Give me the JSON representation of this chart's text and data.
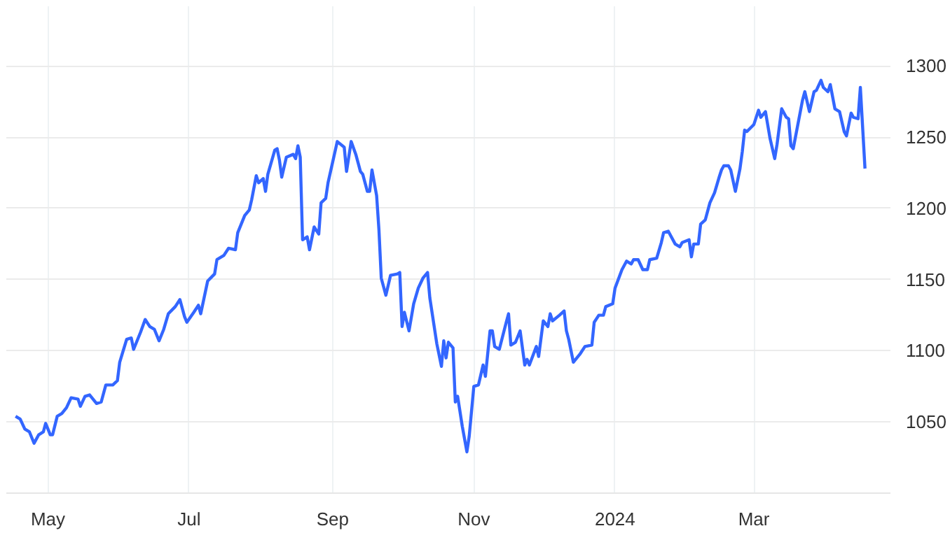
{
  "chart_data": {
    "type": "line",
    "xlim": [
      "2023-04-13",
      "2024-04-29"
    ],
    "ylim": [
      1000,
      1342
    ],
    "xticks": [
      {
        "value": "2023-05-01",
        "label": "May"
      },
      {
        "value": "2023-07-01",
        "label": "Jul"
      },
      {
        "value": "2023-09-01",
        "label": "Sep"
      },
      {
        "value": "2023-11-01",
        "label": "Nov"
      },
      {
        "value": "2024-01-01",
        "label": "2024"
      },
      {
        "value": "2024-03-01",
        "label": "Mar"
      }
    ],
    "yticks": [
      1050,
      1100,
      1150,
      1200,
      1250,
      1300
    ],
    "grid": true,
    "marker": "none",
    "line_style": "solid",
    "x": [
      "2023-04-17",
      "2023-04-19",
      "2023-04-21",
      "2023-04-23",
      "2023-04-25",
      "2023-04-27",
      "2023-04-29",
      "2023-04-30",
      "2023-05-02",
      "2023-05-03",
      "2023-05-05",
      "2023-05-07",
      "2023-05-09",
      "2023-05-11",
      "2023-05-14",
      "2023-05-15",
      "2023-05-17",
      "2023-05-19",
      "2023-05-22",
      "2023-05-24",
      "2023-05-26",
      "2023-05-29",
      "2023-05-31",
      "2023-06-01",
      "2023-06-04",
      "2023-06-06",
      "2023-06-07",
      "2023-06-10",
      "2023-06-12",
      "2023-06-14",
      "2023-06-16",
      "2023-06-18",
      "2023-06-20",
      "2023-06-22",
      "2023-06-25",
      "2023-06-27",
      "2023-06-29",
      "2023-06-30",
      "2023-07-03",
      "2023-07-05",
      "2023-07-06",
      "2023-07-09",
      "2023-07-12",
      "2023-07-13",
      "2023-07-16",
      "2023-07-18",
      "2023-07-21",
      "2023-07-22",
      "2023-07-25",
      "2023-07-27",
      "2023-07-28",
      "2023-07-30",
      "2023-07-31",
      "2023-08-02",
      "2023-08-03",
      "2023-08-04",
      "2023-08-07",
      "2023-08-08",
      "2023-08-09",
      "2023-08-10",
      "2023-08-12",
      "2023-08-15",
      "2023-08-16",
      "2023-08-17",
      "2023-08-18",
      "2023-08-19",
      "2023-08-21",
      "2023-08-22",
      "2023-08-24",
      "2023-08-26",
      "2023-08-27",
      "2023-08-29",
      "2023-08-30",
      "2023-09-03",
      "2023-09-06",
      "2023-09-07",
      "2023-09-09",
      "2023-09-11",
      "2023-09-13",
      "2023-09-14",
      "2023-09-16",
      "2023-09-17",
      "2023-09-18",
      "2023-09-20",
      "2023-09-21",
      "2023-09-22",
      "2023-09-24",
      "2023-09-26",
      "2023-09-29",
      "2023-09-30",
      "2023-10-01",
      "2023-10-02",
      "2023-10-04",
      "2023-10-06",
      "2023-10-08",
      "2023-10-10",
      "2023-10-12",
      "2023-10-13",
      "2023-10-16",
      "2023-10-18",
      "2023-10-19",
      "2023-10-20",
      "2023-10-21",
      "2023-10-23",
      "2023-10-24",
      "2023-10-25",
      "2023-10-27",
      "2023-10-29",
      "2023-10-30",
      "2023-11-01",
      "2023-11-03",
      "2023-11-05",
      "2023-11-06",
      "2023-11-08",
      "2023-11-09",
      "2023-11-10",
      "2023-11-12",
      "2023-11-15",
      "2023-11-16",
      "2023-11-17",
      "2023-11-19",
      "2023-11-21",
      "2023-11-23",
      "2023-11-24",
      "2023-11-25",
      "2023-11-28",
      "2023-11-29",
      "2023-12-01",
      "2023-12-03",
      "2023-12-04",
      "2023-12-05",
      "2023-12-08",
      "2023-12-10",
      "2023-12-11",
      "2023-12-12",
      "2023-12-14",
      "2023-12-17",
      "2023-12-19",
      "2023-12-22",
      "2023-12-23",
      "2023-12-25",
      "2023-12-27",
      "2023-12-28",
      "2023-12-31",
      "2024-01-01",
      "2024-01-04",
      "2024-01-06",
      "2024-01-08",
      "2024-01-09",
      "2024-01-11",
      "2024-01-13",
      "2024-01-15",
      "2024-01-16",
      "2024-01-19",
      "2024-01-21",
      "2024-01-22",
      "2024-01-24",
      "2024-01-27",
      "2024-01-29",
      "2024-01-30",
      "2024-02-02",
      "2024-02-03",
      "2024-02-04",
      "2024-02-06",
      "2024-02-07",
      "2024-02-09",
      "2024-02-11",
      "2024-02-13",
      "2024-02-15",
      "2024-02-16",
      "2024-02-17",
      "2024-02-19",
      "2024-02-20",
      "2024-02-22",
      "2024-02-24",
      "2024-02-25",
      "2024-02-26",
      "2024-02-27",
      "2024-03-01",
      "2024-03-03",
      "2024-03-04",
      "2024-03-06",
      "2024-03-08",
      "2024-03-10",
      "2024-03-11",
      "2024-03-13",
      "2024-03-15",
      "2024-03-16",
      "2024-03-17",
      "2024-03-18",
      "2024-03-22",
      "2024-03-23",
      "2024-03-25",
      "2024-03-27",
      "2024-03-28",
      "2024-03-30",
      "2024-03-31",
      "2024-04-02",
      "2024-04-03",
      "2024-04-05",
      "2024-04-07",
      "2024-04-09",
      "2024-04-10",
      "2024-04-12",
      "2024-04-13",
      "2024-04-15",
      "2024-04-16",
      "2024-04-18"
    ],
    "series": [
      {
        "color": "#3366ff",
        "values": [
          1054,
          1052,
          1045,
          1043,
          1035,
          1041,
          1043,
          1049,
          1041,
          1041,
          1054,
          1056,
          1060,
          1067,
          1066,
          1061,
          1068,
          1069,
          1063,
          1064,
          1076,
          1076,
          1079,
          1092,
          1108,
          1109,
          1101,
          1113,
          1122,
          1117,
          1115,
          1107,
          1115,
          1126,
          1131,
          1136,
          1124,
          1120,
          1127,
          1132,
          1126,
          1149,
          1154,
          1164,
          1167,
          1172,
          1171,
          1183,
          1195,
          1199,
          1206,
          1223,
          1218,
          1221,
          1212,
          1224,
          1241,
          1242,
          1234,
          1222,
          1236,
          1238,
          1235,
          1244,
          1236,
          1178,
          1180,
          1171,
          1187,
          1182,
          1204,
          1207,
          1218,
          1247,
          1243,
          1226,
          1247,
          1238,
          1226,
          1224,
          1212,
          1212,
          1227,
          1209,
          1185,
          1151,
          1139,
          1153,
          1154,
          1155,
          1117,
          1127,
          1114,
          1133,
          1144,
          1151,
          1155,
          1137,
          1105,
          1089,
          1107,
          1095,
          1106,
          1102,
          1064,
          1068,
          1047,
          1029,
          1040,
          1075,
          1076,
          1090,
          1082,
          1114,
          1114,
          1103,
          1101,
          1120,
          1126,
          1104,
          1106,
          1114,
          1090,
          1094,
          1090,
          1103,
          1096,
          1121,
          1117,
          1126,
          1121,
          1125,
          1128,
          1114,
          1108,
          1092,
          1098,
          1103,
          1104,
          1120,
          1125,
          1125,
          1131,
          1133,
          1144,
          1157,
          1163,
          1161,
          1164,
          1164,
          1157,
          1157,
          1164,
          1165,
          1176,
          1183,
          1184,
          1175,
          1173,
          1176,
          1178,
          1166,
          1175,
          1175,
          1189,
          1192,
          1204,
          1211,
          1222,
          1227,
          1230,
          1230,
          1227,
          1212,
          1228,
          1240,
          1255,
          1254,
          1259,
          1269,
          1264,
          1268,
          1249,
          1235,
          1245,
          1270,
          1264,
          1263,
          1244,
          1242,
          1276,
          1282,
          1268,
          1282,
          1283,
          1290,
          1285,
          1282,
          1287,
          1270,
          1268,
          1254,
          1251,
          1267,
          1264,
          1263,
          1285,
          1228
        ]
      }
    ]
  }
}
